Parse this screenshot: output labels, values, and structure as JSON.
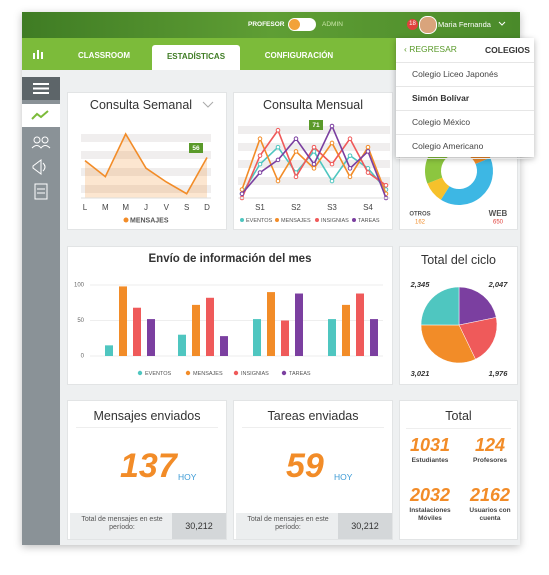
{
  "header": {
    "role_left": "PROFESOR",
    "role_right": "ADMIN",
    "badge": "18",
    "user": "Maria Fernanda"
  },
  "tabs": [
    "CLASSROOM",
    "ESTADÍSTICAS",
    "CONFIGURACIÓN"
  ],
  "active_tab": 1,
  "dropdown": {
    "back": "REGRESAR",
    "title": "COLEGIOS",
    "items": [
      "Colegio Liceo Japonés",
      "Simón Bolívar",
      "Colegio México",
      "Colegio Americano"
    ],
    "selected": 1
  },
  "consulta_semanal": {
    "type": "line",
    "title": "Consulta Semanal",
    "categories": [
      "L",
      "M",
      "M",
      "J",
      "V",
      "S",
      "D"
    ],
    "series": [
      {
        "name": "MENSAJES",
        "color": "#f28c28",
        "values": [
          35,
          20,
          60,
          28,
          15,
          4,
          38
        ]
      }
    ],
    "tag": "56"
  },
  "consulta_mensual": {
    "type": "line",
    "title": "Consulta Mensual",
    "categories": [
      null,
      "S1",
      null,
      "S2",
      null,
      "S3",
      null,
      "S4",
      null
    ],
    "series": [
      {
        "name": "EVENTOS",
        "color": "#4fc6c0",
        "values": [
          5,
          40,
          60,
          30,
          55,
          20,
          50,
          35,
          10
        ]
      },
      {
        "name": "MENSAJES",
        "color": "#f28c28",
        "values": [
          10,
          70,
          20,
          55,
          35,
          65,
          25,
          60,
          5
        ]
      },
      {
        "name": "INSIGNIAS",
        "color": "#ef5a5a",
        "values": [
          0,
          50,
          80,
          25,
          60,
          40,
          70,
          30,
          15
        ]
      },
      {
        "name": "TAREAS",
        "color": "#7b3fa0",
        "values": [
          5,
          30,
          45,
          70,
          40,
          85,
          35,
          55,
          0
        ]
      }
    ],
    "tag": "71"
  },
  "donut": {
    "type": "donut",
    "segments": [
      {
        "value": 300,
        "color": "#f28c28"
      },
      {
        "name": "WEB",
        "value": 650,
        "color": "#3db7e4"
      },
      {
        "name": "OTROS",
        "value": 162,
        "color": "#f6c12b"
      },
      {
        "value": 350,
        "color": "#8cc63f"
      },
      {
        "value": 150,
        "color": "#ef5a5a"
      }
    ]
  },
  "envio": {
    "type": "bar",
    "title": "Envío de información del mes",
    "ylim": [
      0,
      100
    ],
    "yticks": [
      0,
      50,
      100
    ],
    "series": [
      {
        "name": "EVENTOS",
        "color": "#4fc6c0",
        "values": [
          15,
          30,
          52,
          52
        ]
      },
      {
        "name": "MENSAJES",
        "color": "#f28c28",
        "values": [
          98,
          72,
          90,
          72
        ]
      },
      {
        "name": "INSIGNIAS",
        "color": "#ef5a5a",
        "values": [
          68,
          82,
          50,
          88
        ]
      },
      {
        "name": "TAREAS",
        "color": "#7b3fa0",
        "values": [
          52,
          28,
          88,
          52
        ]
      }
    ]
  },
  "total_ciclo": {
    "type": "pie",
    "title": "Total del ciclo",
    "values": [
      2047,
      1976,
      3021,
      2345
    ],
    "value_labels": [
      "2,047",
      "1,976",
      "3,021",
      "2,345"
    ],
    "colors": [
      "#7b3fa0",
      "#ef5a5a",
      "#f28c28",
      "#4fc6c0"
    ]
  },
  "mensajes": {
    "title": "Mensajes enviados",
    "value": 137,
    "unit": "HOY",
    "footer": "Total de mensajes en este período:",
    "total": "30,212"
  },
  "tareas": {
    "title": "Tareas enviadas",
    "value": 59,
    "unit": "HOY",
    "footer": "Total de mensajes en este período:",
    "total": "30,212"
  },
  "total": {
    "title": "Total",
    "stats": [
      {
        "value": 1031,
        "label": "Estudiantes"
      },
      {
        "value": 124,
        "label": "Profesores"
      },
      {
        "value": 2032,
        "label": "Instalaciones Móviles"
      },
      {
        "value": 2162,
        "label": "Usuarios con cuenta"
      }
    ]
  }
}
